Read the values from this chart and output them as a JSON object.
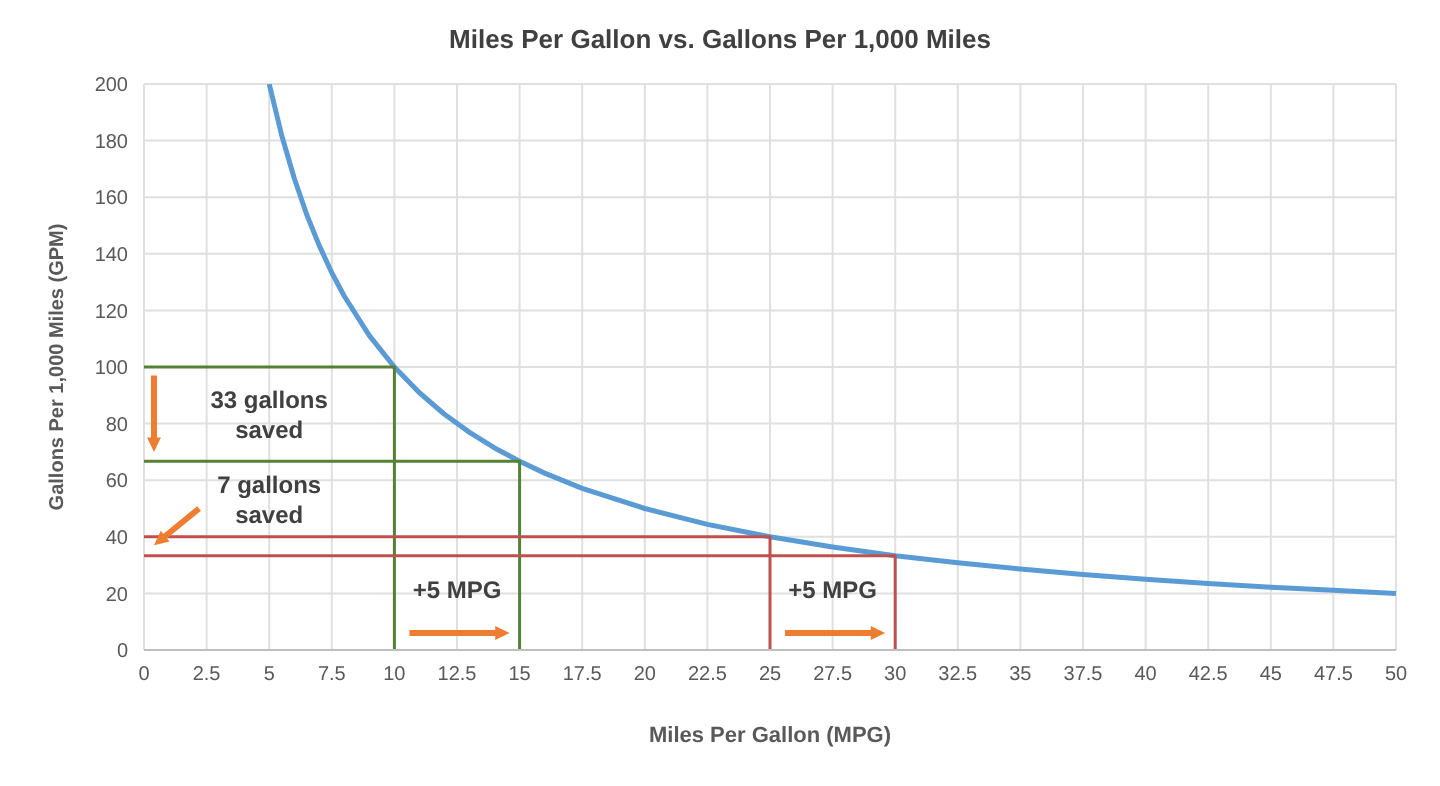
{
  "chart_data": {
    "type": "line",
    "title": "Miles Per Gallon vs. Gallons Per 1,000 Miles",
    "xlabel": "Miles Per Gallon (MPG)",
    "ylabel": "Gallons Per 1,000 Miles (GPM)",
    "xlim": [
      0,
      50
    ],
    "xticks": [
      0,
      2.5,
      5,
      7.5,
      10,
      12.5,
      15,
      17.5,
      20,
      22.5,
      25,
      27.5,
      30,
      32.5,
      35,
      37.5,
      40,
      42.5,
      45,
      47.5,
      50
    ],
    "ylim": [
      0,
      200
    ],
    "yticks": [
      0,
      20,
      40,
      60,
      80,
      100,
      120,
      140,
      160,
      180,
      200
    ],
    "grid": true,
    "marker": "none",
    "line_style": "solid",
    "series": [
      {
        "color": "#5b9bd5",
        "x": [
          5,
          5.5,
          6,
          6.5,
          7,
          7.5,
          8,
          9,
          10,
          11,
          12,
          13,
          14,
          15,
          16,
          17.5,
          20,
          22.5,
          25,
          27.5,
          30,
          32.5,
          35,
          37.5,
          40,
          42.5,
          45,
          47.5,
          50
        ],
        "values": [
          200,
          181.8,
          166.7,
          153.8,
          142.9,
          133.3,
          125,
          111.1,
          100,
          90.9,
          83.3,
          76.9,
          71.4,
          66.7,
          62.5,
          57.1,
          50,
          44.4,
          40,
          36.4,
          33.3,
          30.8,
          28.6,
          26.7,
          25,
          23.5,
          22.2,
          21.1,
          20
        ]
      },
      {
        "color": "#548235",
        "x": [
          0,
          10,
          10
        ],
        "values": [
          100,
          100,
          0
        ]
      },
      {
        "color": "#548235",
        "x": [
          0,
          15,
          15
        ],
        "values": [
          66.7,
          66.7,
          0
        ]
      },
      {
        "color": "#c0504d",
        "x": [
          0,
          25,
          25
        ],
        "values": [
          40,
          40,
          0
        ]
      },
      {
        "color": "#c0504d",
        "x": [
          0,
          30,
          30
        ],
        "values": [
          33.3,
          33.3,
          0
        ]
      }
    ],
    "annotations": [
      "33 gallons saved",
      "7 gallons saved",
      "+5 MPG",
      "+5 MPG"
    ]
  }
}
